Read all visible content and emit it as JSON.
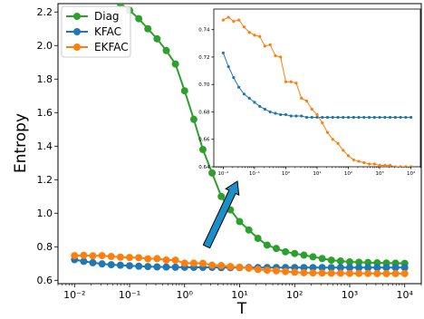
{
  "chart_data": [
    {
      "type": "line",
      "title": "",
      "xlabel": "T",
      "ylabel": "Entropy",
      "xscale": "log",
      "xlim": [
        0.005,
        20000
      ],
      "ylim": [
        0.58,
        2.25
      ],
      "grid": false,
      "legend": "top-left",
      "x": [
        0.01,
        0.0147,
        0.0215,
        0.0316,
        0.0464,
        0.0681,
        0.1,
        0.147,
        0.215,
        0.316,
        0.464,
        0.681,
        1,
        1.47,
        2.15,
        3.16,
        4.64,
        6.81,
        10,
        14.7,
        21.5,
        31.6,
        46.4,
        68.1,
        100,
        147,
        215,
        316,
        464,
        681,
        1000,
        1470,
        2150,
        3160,
        4640,
        6810,
        10000
      ],
      "x_tick_labels": [
        "10⁻²",
        "10⁻¹",
        "10⁰",
        "10¹",
        "10²",
        "10³",
        "10⁴"
      ],
      "y_tick_labels": [
        "0.6",
        "0.8",
        "1.0",
        "1.2",
        "1.4",
        "1.6",
        "1.8",
        "2.0",
        "2.2"
      ],
      "series": [
        {
          "name": "Diag",
          "color": "#2ca02c",
          "values": [
            2.37,
            2.35,
            2.33,
            2.31,
            2.28,
            2.25,
            2.21,
            2.16,
            2.1,
            2.04,
            1.97,
            1.89,
            1.73,
            1.56,
            1.38,
            1.24,
            1.1,
            1.02,
            0.95,
            0.9,
            0.85,
            0.81,
            0.79,
            0.77,
            0.76,
            0.75,
            0.74,
            0.73,
            0.72,
            0.715,
            0.71,
            0.708,
            0.706,
            0.704,
            0.703,
            0.702,
            0.701
          ]
        },
        {
          "name": "KFAC",
          "color": "#1f77b4",
          "values": [
            0.723,
            0.713,
            0.705,
            0.698,
            0.693,
            0.69,
            0.687,
            0.684,
            0.682,
            0.68,
            0.679,
            0.678,
            0.678,
            0.677,
            0.677,
            0.677,
            0.676,
            0.676,
            0.676,
            0.676,
            0.676,
            0.676,
            0.676,
            0.676,
            0.676,
            0.676,
            0.676,
            0.676,
            0.676,
            0.676,
            0.676,
            0.676,
            0.676,
            0.676,
            0.676,
            0.676,
            0.676
          ]
        },
        {
          "name": "EKFAC",
          "color": "#ff7f0e",
          "values": [
            0.747,
            0.749,
            0.746,
            0.747,
            0.742,
            0.738,
            0.736,
            0.735,
            0.728,
            0.729,
            0.721,
            0.72,
            0.702,
            0.702,
            0.701,
            0.69,
            0.688,
            0.682,
            0.678,
            0.672,
            0.665,
            0.66,
            0.657,
            0.652,
            0.648,
            0.645,
            0.644,
            0.643,
            0.642,
            0.642,
            0.641,
            0.641,
            0.641,
            0.64,
            0.64,
            0.64,
            0.64
          ]
        }
      ]
    },
    {
      "type": "line",
      "title": "",
      "description": "inset zoom of KFAC and EKFAC",
      "xscale": "log",
      "xlim": [
        0.005,
        20000
      ],
      "ylim": [
        0.64,
        0.755
      ],
      "grid": false,
      "x_tick_labels": [
        "10⁻²",
        "10⁻¹",
        "10⁰",
        "10¹",
        "10²",
        "10³",
        "10⁴"
      ],
      "y_tick_labels": [
        "0.64",
        "0.66",
        "0.68",
        "0.70",
        "0.72",
        "0.74"
      ],
      "series": [
        {
          "name": "KFAC",
          "color": "#1f77b4",
          "values": [
            0.723,
            0.713,
            0.705,
            0.698,
            0.693,
            0.69,
            0.687,
            0.684,
            0.682,
            0.68,
            0.679,
            0.678,
            0.678,
            0.677,
            0.677,
            0.677,
            0.676,
            0.676,
            0.676,
            0.676,
            0.676,
            0.676,
            0.676,
            0.676,
            0.676,
            0.676,
            0.676,
            0.676,
            0.676,
            0.676,
            0.676,
            0.676,
            0.676,
            0.676,
            0.676,
            0.676,
            0.676
          ]
        },
        {
          "name": "EKFAC",
          "color": "#ff7f0e",
          "values": [
            0.747,
            0.749,
            0.746,
            0.747,
            0.742,
            0.738,
            0.736,
            0.735,
            0.728,
            0.729,
            0.721,
            0.72,
            0.702,
            0.702,
            0.701,
            0.69,
            0.688,
            0.682,
            0.678,
            0.672,
            0.665,
            0.66,
            0.657,
            0.652,
            0.648,
            0.645,
            0.644,
            0.643,
            0.642,
            0.642,
            0.641,
            0.641,
            0.641,
            0.64,
            0.64,
            0.64,
            0.64
          ]
        }
      ]
    }
  ],
  "annotation": {
    "arrow_color": "#1a8fc9",
    "arrow_outline": "#000000"
  }
}
